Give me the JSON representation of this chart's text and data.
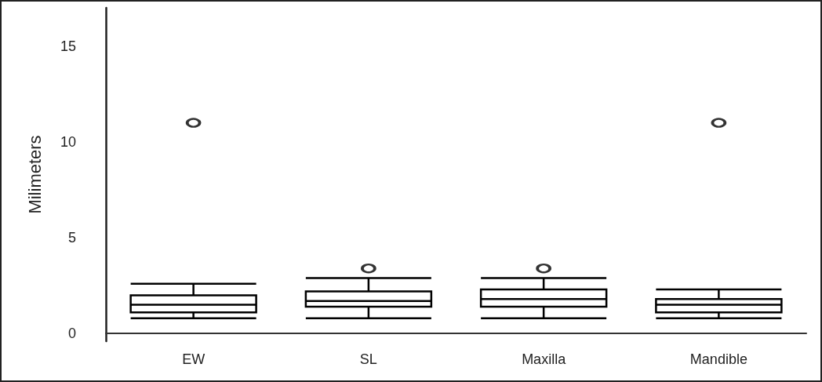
{
  "chart_data": {
    "type": "box",
    "ylabel": "Milimeters",
    "categories": [
      "EW",
      "SL",
      "Maxilla",
      "Mandible"
    ],
    "boxes": [
      {
        "low": 0.8,
        "q1": 1.1,
        "median": 1.5,
        "q3": 2.0,
        "high": 2.6,
        "outliers": [
          11.0
        ]
      },
      {
        "low": 0.8,
        "q1": 1.4,
        "median": 1.7,
        "q3": 2.2,
        "high": 2.9,
        "outliers": [
          3.4
        ]
      },
      {
        "low": 0.8,
        "q1": 1.4,
        "median": 1.8,
        "q3": 2.3,
        "high": 2.9,
        "outliers": [
          3.4
        ]
      },
      {
        "low": 0.8,
        "q1": 1.1,
        "median": 1.5,
        "q3": 1.8,
        "high": 2.3,
        "outliers": [
          11.0
        ]
      }
    ],
    "color": "#000000",
    "ylim": [
      -0.4,
      17
    ],
    "yticks": [
      0,
      5,
      10,
      15
    ],
    "grid": false
  }
}
